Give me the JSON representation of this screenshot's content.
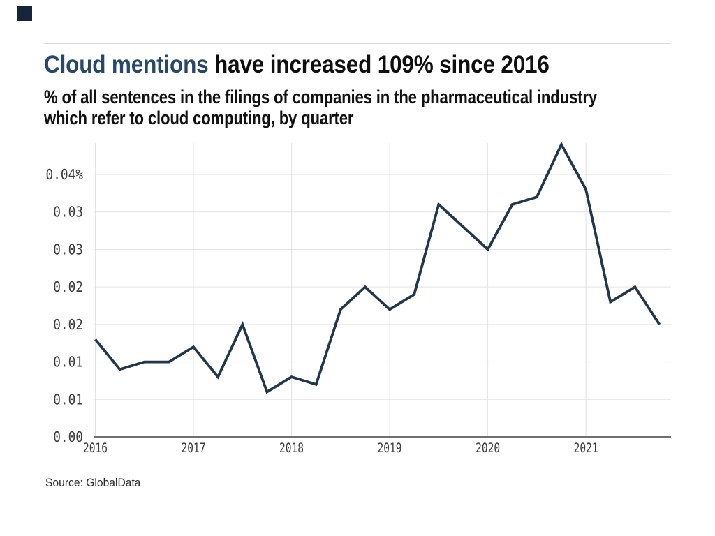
{
  "header": {
    "title_highlight": "Cloud mentions",
    "title_rest": " have increased 109% since 2016",
    "subtitle_lines": [
      "% of all sentences in the filings of companies in the pharmaceutical industry",
      "which refer to cloud computing, by quarter"
    ],
    "accent_color": "#26486a",
    "logo_color": "#16243c"
  },
  "footer": {
    "source": "Source: GlobalData"
  },
  "chart_data": {
    "type": "line",
    "title": "Cloud mentions have increased 109% since 2016",
    "subtitle": "% of all sentences in the filings of companies in the pharmaceutical industry which refer to cloud computing, by quarter",
    "x_unit": "quarter",
    "x_quarters": [
      "2016-Q1",
      "2016-Q2",
      "2016-Q3",
      "2016-Q4",
      "2017-Q1",
      "2017-Q2",
      "2017-Q3",
      "2017-Q4",
      "2018-Q1",
      "2018-Q2",
      "2018-Q3",
      "2018-Q4",
      "2019-Q1",
      "2019-Q2",
      "2019-Q3",
      "2019-Q4",
      "2020-Q1",
      "2020-Q2",
      "2020-Q3",
      "2020-Q4",
      "2021-Q1",
      "2021-Q2",
      "2021-Q3",
      "2021-Q4"
    ],
    "series": [
      {
        "name": "% of sentences referring to cloud computing",
        "values": [
          0.013,
          0.009,
          0.01,
          0.01,
          0.012,
          0.008,
          0.015,
          0.006,
          0.008,
          0.007,
          0.017,
          0.02,
          0.017,
          0.019,
          0.031,
          0.028,
          0.025,
          0.031,
          0.032,
          0.039,
          0.033,
          0.018,
          0.02,
          0.015
        ]
      }
    ],
    "x_tick_labels": [
      "2016",
      "2017",
      "2018",
      "2019",
      "2020",
      "2021"
    ],
    "y_ticks": [
      {
        "value": 0.0,
        "label": "0.00"
      },
      {
        "value": 0.005,
        "label": "0.01"
      },
      {
        "value": 0.01,
        "label": "0.01"
      },
      {
        "value": 0.015,
        "label": "0.02"
      },
      {
        "value": 0.02,
        "label": "0.02"
      },
      {
        "value": 0.025,
        "label": "0.03"
      },
      {
        "value": 0.03,
        "label": "0.03"
      },
      {
        "value": 0.035,
        "label": "0.04%"
      }
    ],
    "ylim": [
      0,
      0.039
    ],
    "grid": true,
    "legend": "none",
    "line_color": "#22374e",
    "grid_color": "#e3e3e3",
    "axis_color": "#707070",
    "tick_color": "#3d3d3d"
  }
}
